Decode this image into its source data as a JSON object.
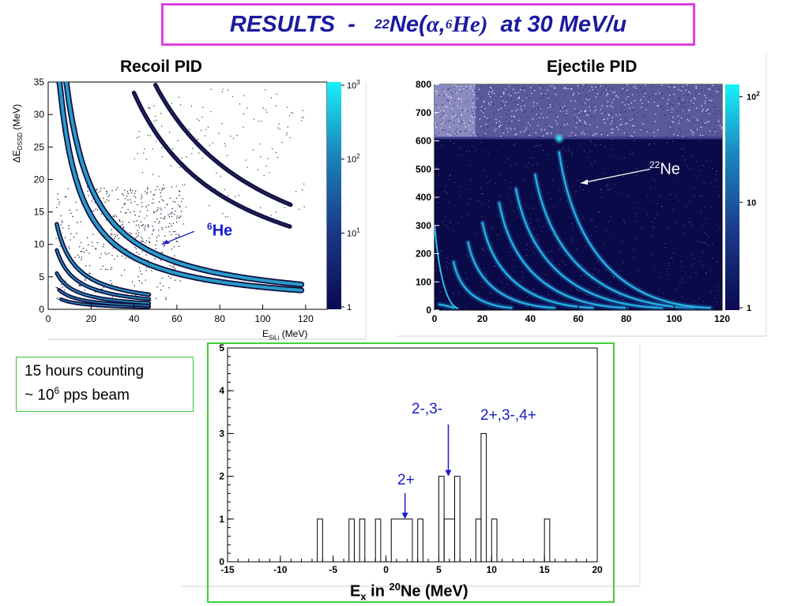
{
  "title": {
    "prefix": "RESULTS  -   ",
    "sup1": "22",
    "ne": "Ne(",
    "alpha": "α",
    "comma": ",",
    "sup2": "6",
    "he": "He)",
    "suffix": "  at 30 MeV/u"
  },
  "note": {
    "line1": "15 hours counting",
    "line2_pre": "~ 10",
    "line2_sup": "6",
    "line2_post": " pps beam"
  },
  "colors": {
    "accent": "#1a1aa0",
    "title_border": "#e040e0",
    "green_border": "#3fd03f",
    "palette_low": "#0a0a50",
    "palette_high": "#18e0f0"
  },
  "chart_data": [
    {
      "type": "heatmap",
      "title": "Recoil PID",
      "xlabel_pre": "E",
      "xlabel_sub": "SiLi",
      "xlabel_post": " (MeV)",
      "ylabel_pre": "ΔE",
      "ylabel_sub": "DSSD",
      "ylabel_post": " (MeV)",
      "xlim": [
        0,
        130
      ],
      "ylim": [
        0,
        35
      ],
      "xticks": [
        "0",
        "20",
        "40",
        "60",
        "80",
        "100",
        "120"
      ],
      "yticks": [
        "0",
        "5",
        "10",
        "15",
        "20",
        "25",
        "30",
        "35"
      ],
      "z_scale": "log",
      "colorbar": [
        {
          "label": "1",
          "value": 1
        },
        {
          "label": "10",
          "sup": "1",
          "value": 10
        },
        {
          "label": "10",
          "sup": "2",
          "value": 100
        },
        {
          "label": "10",
          "sup": "3",
          "value": 1000
        }
      ],
      "bands": [
        {
          "k": 17,
          "xmin": 6,
          "xmax": 47,
          "w": 2.2
        },
        {
          "k": 30,
          "xmin": 5,
          "xmax": 47,
          "w": 2.2
        },
        {
          "k": 50,
          "xmin": 4,
          "xmax": 47,
          "w": 2.5
        },
        {
          "k": 82,
          "xmin": 4,
          "xmax": 47,
          "w": 2.5
        },
        {
          "k": 118,
          "xmin": 4,
          "xmax": 47,
          "w": 3
        },
        {
          "k": 360,
          "xmin": 1,
          "xmax": 118,
          "w": 5
        },
        {
          "k": 470,
          "xmin": 1,
          "xmax": 118,
          "w": 5
        },
        {
          "k": 1500,
          "xmin": 40,
          "xmax": 113,
          "w": 3
        },
        {
          "k": 1900,
          "xmin": 50,
          "xmax": 113,
          "w": 3
        }
      ],
      "annotation": {
        "label_sup": "6",
        "label": "He",
        "point": [
          53,
          10
        ],
        "text_at": [
          68,
          12
        ]
      }
    },
    {
      "type": "heatmap",
      "title": "Ejectile PID",
      "xlim": [
        0,
        120
      ],
      "ylim": [
        0,
        800
      ],
      "xticks": [
        "0",
        "20",
        "40",
        "60",
        "80",
        "100",
        "120"
      ],
      "yticks": [
        "0",
        "100",
        "200",
        "300",
        "400",
        "500",
        "600",
        "700",
        "800"
      ],
      "z_scale": "log",
      "colorbar": [
        {
          "label": "1",
          "value": 1
        },
        {
          "label": "10",
          "value": 10
        },
        {
          "label": "10",
          "sup": "2",
          "value": 100
        }
      ],
      "bands": [
        {
          "x0": 2,
          "x1": 8,
          "y1": 20
        },
        {
          "x0": 8,
          "x1": 32,
          "y1": 170
        },
        {
          "x0": 14,
          "x1": 50,
          "y1": 240
        },
        {
          "x0": 20,
          "x1": 66,
          "y1": 310
        },
        {
          "x0": 27,
          "x1": 80,
          "y1": 380
        },
        {
          "x0": 34,
          "x1": 95,
          "y1": 430
        },
        {
          "x0": 42,
          "x1": 108,
          "y1": 480
        },
        {
          "x0": 52,
          "x1": 115,
          "y1": 560
        }
      ],
      "background_edge_y": 610,
      "annotation": {
        "label_sup": "22",
        "label": "Ne",
        "point": [
          61,
          450
        ],
        "text_at": [
          90,
          500
        ]
      }
    },
    {
      "type": "bar",
      "style": "step",
      "xlabel_pre": "E",
      "xlabel_sub": "x",
      "xlabel_mid": " in ",
      "xlabel_sup": "20",
      "xlabel_post": "Ne (MeV)",
      "xlim": [
        -15,
        20
      ],
      "ylim": [
        0,
        5
      ],
      "xticks": [
        "-15",
        "-10",
        "-5",
        "0",
        "5",
        "10",
        "15",
        "20"
      ],
      "yticks": [
        "0",
        "1",
        "2",
        "3",
        "4",
        "5"
      ],
      "bins": [
        {
          "x": -6.5,
          "w": 0.5,
          "count": 1
        },
        {
          "x": -3.5,
          "w": 0.5,
          "count": 1
        },
        {
          "x": -2.5,
          "w": 0.5,
          "count": 1
        },
        {
          "x": -1.0,
          "w": 0.5,
          "count": 1
        },
        {
          "x": 0.5,
          "w": 2.0,
          "count": 1
        },
        {
          "x": 3.0,
          "w": 0.5,
          "count": 1
        },
        {
          "x": 5.0,
          "w": 0.5,
          "count": 2
        },
        {
          "x": 5.5,
          "w": 1.0,
          "count": 1
        },
        {
          "x": 6.5,
          "w": 0.5,
          "count": 2
        },
        {
          "x": 8.5,
          "w": 0.5,
          "count": 1
        },
        {
          "x": 9.0,
          "w": 0.5,
          "count": 3
        },
        {
          "x": 10.0,
          "w": 0.5,
          "count": 1
        },
        {
          "x": 15.0,
          "w": 0.5,
          "count": 1
        }
      ],
      "annotations": [
        {
          "label": "2+",
          "arrow_x": 1.8,
          "arrow_y1": 1.0
        },
        {
          "label": "2-,3-",
          "arrow_x": 5.9,
          "arrow_y1": 2.0
        },
        {
          "label": "2+,3-,4+"
        }
      ]
    }
  ]
}
